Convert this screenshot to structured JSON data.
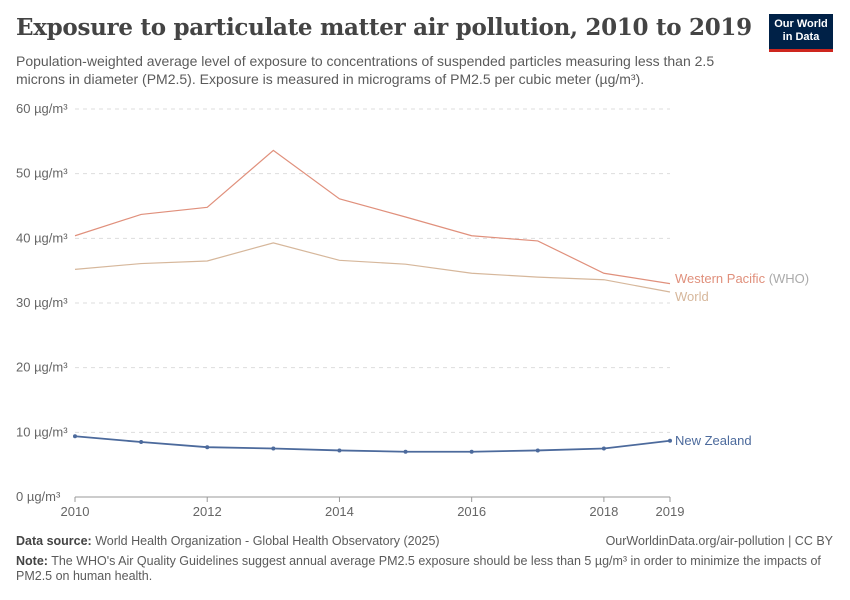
{
  "header": {
    "title": "Exposure to particulate matter air pollution, 2010 to 2019",
    "subtitle": "Population-weighted average level of exposure to concentrations of suspended particles measuring less than 2.5 microns in diameter (PM2.5). Exposure is measured in micrograms of PM2.5 per cubic meter (µg/m³).",
    "logo": "Our World in Data"
  },
  "chart_data": {
    "type": "line",
    "title": "Exposure to particulate matter air pollution, 2010 to 2019",
    "x": [
      2010,
      2011,
      2012,
      2013,
      2014,
      2015,
      2016,
      2017,
      2018,
      2019
    ],
    "xticks": [
      "2010",
      "2012",
      "2014",
      "2016",
      "2018",
      "2019"
    ],
    "yticks": [
      "0 µg/m³",
      "10 µg/m³",
      "20 µg/m³",
      "30 µg/m³",
      "40 µg/m³",
      "50 µg/m³",
      "60 µg/m³"
    ],
    "ylim": [
      0,
      60
    ],
    "grid": true,
    "series": [
      {
        "name": "Western Pacific",
        "suffix": "(WHO)",
        "color": "#e0907c",
        "values": [
          40.4,
          43.7,
          44.8,
          53.6,
          46.1,
          43.3,
          40.4,
          39.6,
          34.6,
          33.0
        ]
      },
      {
        "name": "World",
        "color": "#d6b79b",
        "values": [
          35.2,
          36.1,
          36.5,
          39.3,
          36.6,
          36.0,
          34.6,
          34.0,
          33.6,
          31.7
        ]
      },
      {
        "name": "New Zealand",
        "color": "#4c6a9c",
        "markers": true,
        "values": [
          9.4,
          8.5,
          7.7,
          7.5,
          7.2,
          7.0,
          7.0,
          7.2,
          7.5,
          8.7
        ]
      }
    ]
  },
  "footer": {
    "source_label": "Data source:",
    "source": "World Health Organization - Global Health Observatory (2025)",
    "url": "OurWorldinData.org/air-pollution | CC BY",
    "note_label": "Note:",
    "note": "The WHO's Air Quality Guidelines suggest annual average PM2.5 exposure should be less than 5 µg/m³ in order to minimize the impacts of PM2.5 on human health."
  }
}
